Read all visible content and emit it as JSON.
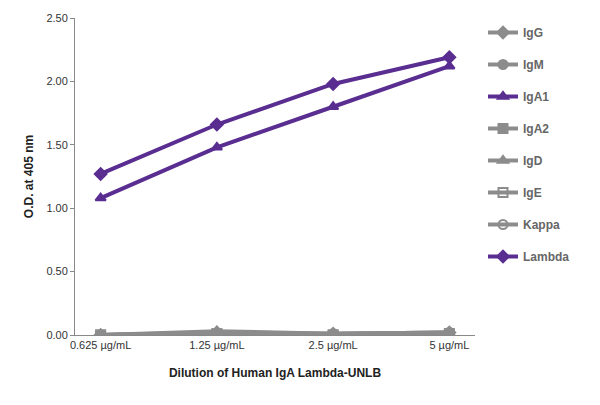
{
  "chart_data": {
    "type": "line",
    "x_label": "Dilution of Human IgA Lambda-UNLB",
    "y_label": "O.D. at 405 nm",
    "categories": [
      "0.625 µg/mL",
      "1.25 µg/mL",
      "2.5 µg/mL",
      "5 µg/mL"
    ],
    "series": [
      {
        "name": "IgG",
        "color": "#8c8c8c",
        "marker": "diamond",
        "values": [
          0.0,
          0.02,
          0.01,
          0.02
        ]
      },
      {
        "name": "IgM",
        "color": "#8c8c8c",
        "marker": "circle",
        "values": [
          0.0,
          0.01,
          0.0,
          0.01
        ]
      },
      {
        "name": "IgA1",
        "color": "#5a2d91",
        "marker": "triangle-up",
        "values": [
          1.08,
          1.48,
          1.8,
          2.12
        ]
      },
      {
        "name": "IgA2",
        "color": "#8c8c8c",
        "marker": "square",
        "values": [
          0.0,
          0.01,
          0.0,
          0.01
        ]
      },
      {
        "name": "IgD",
        "color": "#8c8c8c",
        "marker": "triangle-up",
        "values": [
          0.0,
          0.03,
          0.01,
          0.02
        ]
      },
      {
        "name": "IgE",
        "color": "#8c8c8c",
        "marker": "square-open",
        "values": [
          0.0,
          0.01,
          0.0,
          0.01
        ]
      },
      {
        "name": "Kappa",
        "color": "#8c8c8c",
        "marker": "circle-open",
        "values": [
          0.0,
          0.01,
          0.01,
          0.02
        ]
      },
      {
        "name": "Lambda",
        "color": "#5a2d91",
        "marker": "diamond",
        "values": [
          1.27,
          1.66,
          1.98,
          2.19
        ]
      }
    ],
    "ylim": [
      0,
      2.5
    ],
    "yticks": [
      {
        "value": 0,
        "label": "0.00"
      },
      {
        "value": 0.5,
        "label": "0.50"
      },
      {
        "value": 1,
        "label": "1.00"
      },
      {
        "value": 1.5,
        "label": "1.50"
      },
      {
        "value": 2,
        "label": "2.00"
      },
      {
        "value": 2.5,
        "label": "2.50"
      }
    ],
    "grid": false,
    "legend": "right"
  }
}
